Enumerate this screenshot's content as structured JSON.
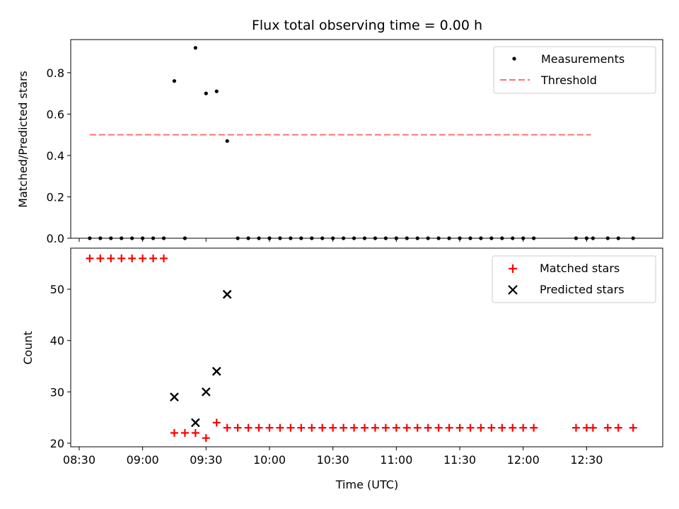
{
  "chart_data": {
    "type": "scatter",
    "title": "Flux total observing time = 0.00 h",
    "xlabel": "Time (UTC)",
    "x_ticks": [
      "08:30",
      "09:00",
      "09:30",
      "10:00",
      "10:30",
      "11:00",
      "11:30",
      "12:00",
      "12:30"
    ],
    "x_range_minutes": [
      506,
      786
    ],
    "top": {
      "ylabel": "Matched/Predicted stars",
      "ylim": [
        0,
        0.96
      ],
      "y_ticks": [
        "0.0",
        "0.2",
        "0.4",
        "0.6",
        "0.8"
      ],
      "legend": [
        "Measurements",
        "Threshold"
      ],
      "threshold": 0.5,
      "threshold_x": [
        515,
        752
      ],
      "colors": {
        "measurements": "#000000",
        "threshold": "#ff7070"
      },
      "measurements": {
        "x": [
          515,
          520,
          525,
          530,
          535,
          540,
          545,
          550,
          555,
          560,
          565,
          570,
          575,
          580,
          585,
          590,
          595,
          600,
          605,
          610,
          615,
          620,
          625,
          630,
          635,
          640,
          645,
          650,
          655,
          660,
          665,
          670,
          675,
          680,
          685,
          690,
          695,
          700,
          705,
          710,
          715,
          720,
          725,
          745,
          750,
          753,
          760,
          765,
          772
        ],
        "y": [
          0,
          0,
          0,
          0,
          0,
          0,
          0,
          0,
          0.76,
          0,
          0.92,
          0.7,
          0.71,
          0.47,
          0,
          0,
          0,
          0,
          0,
          0,
          0,
          0,
          0,
          0,
          0,
          0,
          0,
          0,
          0,
          0,
          0,
          0,
          0,
          0,
          0,
          0,
          0,
          0,
          0,
          0,
          0,
          0,
          0,
          0,
          0,
          0,
          0,
          0,
          0
        ]
      }
    },
    "bottom": {
      "ylabel": "Count",
      "ylim": [
        19.3,
        58
      ],
      "y_ticks": [
        "20",
        "30",
        "40",
        "50"
      ],
      "legend": [
        "Matched stars",
        "Predicted stars"
      ],
      "colors": {
        "matched": "#ff0000",
        "predicted": "#000000"
      },
      "matched": {
        "x": [
          515,
          520,
          525,
          530,
          535,
          540,
          545,
          550,
          555,
          560,
          565,
          570,
          575,
          580,
          585,
          590,
          595,
          600,
          605,
          610,
          615,
          620,
          625,
          630,
          635,
          640,
          645,
          650,
          655,
          660,
          665,
          670,
          675,
          680,
          685,
          690,
          695,
          700,
          705,
          710,
          715,
          720,
          725,
          745,
          750,
          753,
          760,
          765,
          772
        ],
        "y": [
          56,
          56,
          56,
          56,
          56,
          56,
          56,
          56,
          22,
          22,
          22,
          21,
          24,
          23,
          23,
          23,
          23,
          23,
          23,
          23,
          23,
          23,
          23,
          23,
          23,
          23,
          23,
          23,
          23,
          23,
          23,
          23,
          23,
          23,
          23,
          23,
          23,
          23,
          23,
          23,
          23,
          23,
          23,
          23,
          23,
          23,
          23,
          23,
          23
        ]
      },
      "predicted": {
        "x": [
          555,
          565,
          570,
          575,
          580
        ],
        "y": [
          29,
          24,
          30,
          34,
          49
        ]
      }
    }
  }
}
